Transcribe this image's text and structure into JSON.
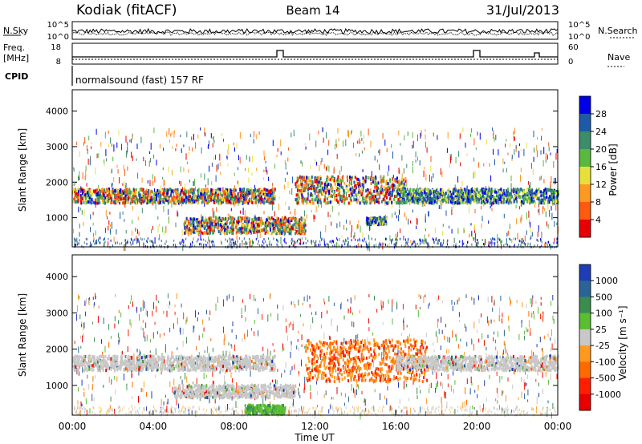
{
  "header": {
    "station": "Kodiak (fitACF)",
    "beam": "Beam 14",
    "date": "31/Jul/2013"
  },
  "noise_panel": {
    "left_label": "N.Sky",
    "right_label": "N.Search",
    "left_ticks": [
      "10^5",
      "10^0"
    ],
    "right_ticks": [
      "10^5",
      "10^0"
    ]
  },
  "freq_panel": {
    "left_label_1": "Freq.",
    "left_label_2": "[MHz]",
    "right_label": "Nave",
    "left_ticks": [
      "18",
      "8"
    ],
    "right_ticks": [
      "60",
      "0"
    ]
  },
  "cpid": {
    "label": "CPID",
    "value": "normalsound (fast) 157 RF"
  },
  "chart_data": [
    {
      "type": "heatmap",
      "name": "power",
      "ylabel": "Slant Range [km]",
      "ylim": [
        180,
        4600
      ],
      "y_ticks": [
        "1000",
        "2000",
        "3000",
        "4000"
      ],
      "colorbar_label": "Power [dB]",
      "colorbar_ticks": [
        "4",
        "8",
        "12",
        "16",
        "20",
        "24",
        "28"
      ],
      "colorbar_colors": [
        "#0000e8",
        "#1e5aa8",
        "#3e8c6a",
        "#5ab83e",
        "#e8e03a",
        "#ff9a20",
        "#ff5a10",
        "#e80000"
      ],
      "bands": [
        {
          "t_start": 0.0,
          "t_end": 10.0,
          "range_start": 1450,
          "range_end": 1850,
          "level": "high"
        },
        {
          "t_start": 5.5,
          "t_end": 11.5,
          "range_start": 600,
          "range_end": 1050,
          "level": "high"
        },
        {
          "t_start": 11.0,
          "t_end": 16.5,
          "range_start": 1450,
          "range_end": 2200,
          "level": "high"
        },
        {
          "t_start": 14.5,
          "t_end": 15.5,
          "range_start": 850,
          "range_end": 1050,
          "level": "medium"
        },
        {
          "t_start": 16.0,
          "t_end": 24.0,
          "range_start": 1450,
          "range_end": 1850,
          "level": "medium"
        }
      ]
    },
    {
      "type": "heatmap",
      "name": "velocity",
      "ylabel": "Slant Range [km]",
      "ylim": [
        180,
        4600
      ],
      "y_ticks": [
        "1000",
        "2000",
        "3000",
        "4000"
      ],
      "x_ticks": [
        "00:00",
        "04:00",
        "08:00",
        "12:00",
        "16:00",
        "20:00",
        "00:00"
      ],
      "xlabel": "Time UT",
      "colorbar_label": "Velocity [m s⁻¹]",
      "colorbar_ticks": [
        "1000",
        "500",
        "100",
        "25",
        "-25",
        "-100",
        "-500",
        "-1000"
      ],
      "colorbar_colors": [
        "#1e3cb4",
        "#2a6496",
        "#3c8c50",
        "#5abe32",
        "#c8c8c8",
        "#ff9a1e",
        "#ff6a00",
        "#ff1e00",
        "#e80000"
      ],
      "bands": [
        {
          "t_start": 0.0,
          "t_end": 10.0,
          "range_start": 1450,
          "range_end": 1850,
          "level": "near-zero"
        },
        {
          "t_start": 5.0,
          "t_end": 11.0,
          "range_start": 700,
          "range_end": 1050,
          "level": "near-zero"
        },
        {
          "t_start": 8.5,
          "t_end": 10.5,
          "range_start": 250,
          "range_end": 500,
          "level": "positive"
        },
        {
          "t_start": 11.5,
          "t_end": 17.5,
          "range_start": 1150,
          "range_end": 2300,
          "level": "negative"
        },
        {
          "t_start": 16.0,
          "t_end": 24.0,
          "range_start": 1450,
          "range_end": 1850,
          "level": "near-zero"
        }
      ]
    }
  ]
}
